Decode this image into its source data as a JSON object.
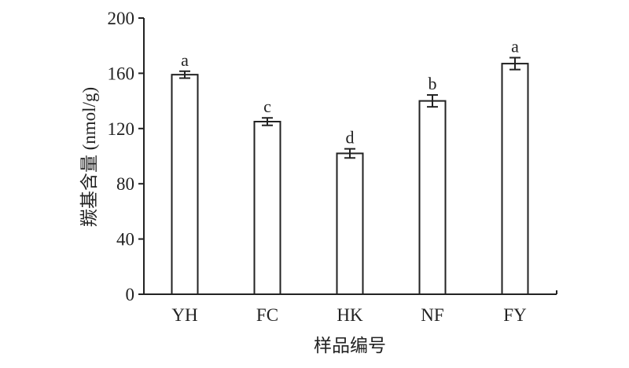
{
  "chart_data": {
    "type": "bar",
    "title": "",
    "xlabel": "样品编号",
    "ylabel": "羰基含量 (nmol/g)",
    "ylim": [
      0,
      200
    ],
    "yticks": [
      0,
      40,
      80,
      120,
      160,
      200
    ],
    "categories": [
      "YH",
      "FC",
      "HK",
      "NF",
      "FY"
    ],
    "values": [
      159,
      125,
      102,
      140,
      167
    ],
    "errors": [
      2.5,
      2.7,
      3.3,
      4.3,
      4.3
    ],
    "significance_labels": [
      "a",
      "c",
      "d",
      "b",
      "a"
    ],
    "grid": false,
    "bar_fill": "#ffffff",
    "bar_stroke": "#222222"
  }
}
